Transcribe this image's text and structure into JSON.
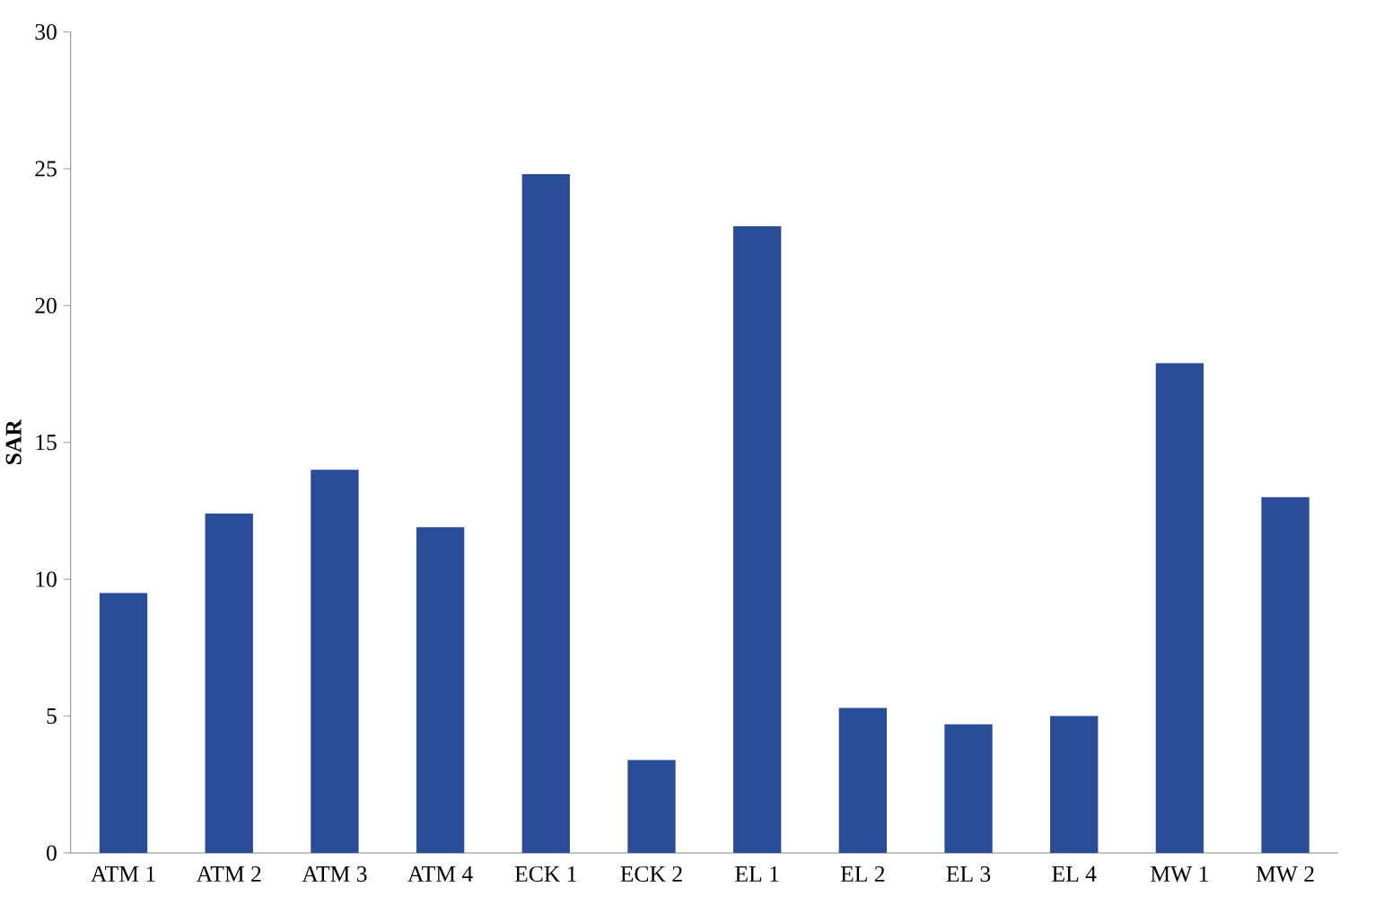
{
  "chart_data": {
    "type": "bar",
    "ylabel": "SAR",
    "categories": [
      "ATM 1",
      "ATM 2",
      "ATM 3",
      "ATM 4",
      "ECK 1",
      "ECK 2",
      "EL 1",
      "EL 2",
      "EL 3",
      "EL 4",
      "MW 1",
      "MW 2"
    ],
    "values": [
      9.5,
      12.4,
      14.0,
      11.9,
      24.8,
      3.4,
      22.9,
      5.3,
      4.7,
      5.0,
      17.9,
      13.0
    ],
    "color": "#2b4d97",
    "ylim": [
      0,
      30
    ],
    "yticks": [
      0,
      5,
      10,
      15,
      20,
      25,
      30
    ]
  }
}
